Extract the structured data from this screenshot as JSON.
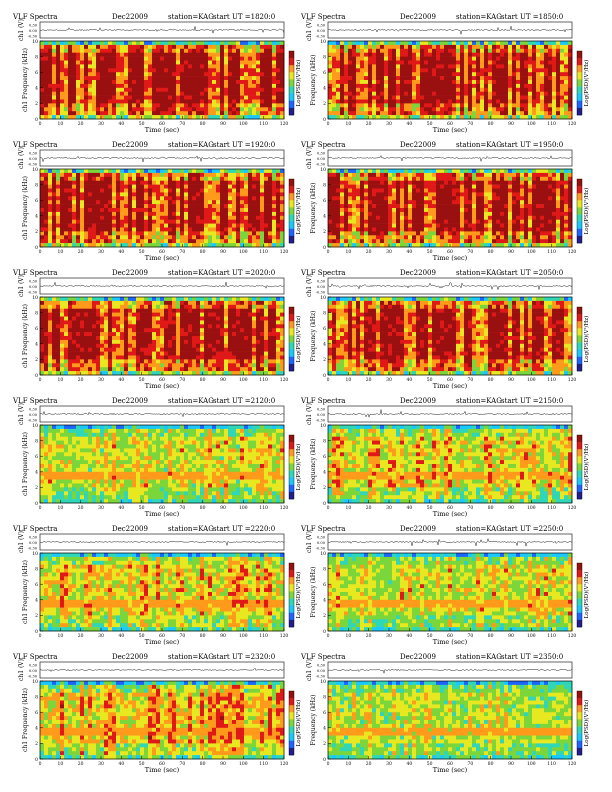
{
  "page": {
    "title_prefix": "VLF Spectra",
    "date": "Dec22009",
    "station": "station=KAG",
    "start_label": "start  UT  ="
  },
  "colors": {
    "background": "#ffffff",
    "axis": "#000000",
    "colormap": [
      "#1f1f8f",
      "#1e64ff",
      "#19c8ff",
      "#2fd6b8",
      "#7ad63a",
      "#e8e820",
      "#ff9a1a",
      "#e01818",
      "#9a1010"
    ]
  },
  "chart_data": [
    {
      "type": "heatmap",
      "start_ut": "1820:0",
      "title": "VLF Spectra  Dec22009  station=KAG  start  UT  =1820:0",
      "ylabel_top": "ch1 (V)",
      "ylabel_main": "ch1  Frequency  (kHz)",
      "xlabel": "Time  (sec)",
      "cbar_label": "Log(PSD)(V²/Hz)",
      "xlim": [
        0,
        120
      ],
      "ylim": [
        0,
        10
      ],
      "amp_ylim": [
        -0.3,
        0.3
      ],
      "x_ticks": [
        0,
        10,
        20,
        30,
        40,
        50,
        60,
        70,
        80,
        90,
        100,
        110,
        120
      ],
      "y_ticks": [
        0,
        2,
        4,
        6,
        8,
        10
      ],
      "amp_ticks": [
        "0.30",
        "0.00",
        "-0.30"
      ],
      "activity": 0.95
    },
    {
      "type": "heatmap",
      "start_ut": "1850:0",
      "title": "VLF Spectra  Dec22009  station=KAG  start  UT  =1850:0",
      "ylabel_top": "ch1 (V)",
      "ylabel_main": "Frequency  (kHz)",
      "xlabel": "Time  (sec)",
      "cbar_label": "Log(PSD)(V²/Hz)",
      "xlim": [
        0,
        120
      ],
      "ylim": [
        0,
        10
      ],
      "amp_ylim": [
        -0.3,
        0.3
      ],
      "x_ticks": [
        0,
        10,
        20,
        30,
        40,
        50,
        60,
        70,
        80,
        90,
        100,
        110,
        120
      ],
      "y_ticks": [
        0,
        2,
        4,
        6,
        8,
        10
      ],
      "amp_ticks": [
        "0.30",
        "0.00",
        "-0.30"
      ],
      "activity": 0.92
    },
    {
      "type": "heatmap",
      "start_ut": "1920:0",
      "title": "VLF Spectra  Dec22009  station=KAG  start  UT  =1920:0",
      "ylabel_top": "ch1 (V)",
      "ylabel_main": "ch1  Frequency  (kHz)",
      "xlabel": "Time  (sec)",
      "cbar_label": "Log(PSD)(V²/Hz)",
      "xlim": [
        0,
        120
      ],
      "ylim": [
        0,
        10
      ],
      "amp_ylim": [
        -0.3,
        0.3
      ],
      "x_ticks": [
        0,
        10,
        20,
        30,
        40,
        50,
        60,
        70,
        80,
        90,
        100,
        110,
        120
      ],
      "y_ticks": [
        0,
        2,
        4,
        6,
        8,
        10
      ],
      "amp_ticks": [
        "0.30",
        "0.00",
        "-0.30"
      ],
      "activity": 0.94
    },
    {
      "type": "heatmap",
      "start_ut": "1950:0",
      "title": "VLF Spectra  Dec22009  station=KAG  start  UT  =1950:0",
      "ylabel_top": "ch1 (V)",
      "ylabel_main": "Frequency  (kHz)",
      "xlabel": "Time  (sec)",
      "cbar_label": "Log(PSD)(V²/Hz)",
      "xlim": [
        0,
        120
      ],
      "ylim": [
        0,
        10
      ],
      "amp_ylim": [
        -0.3,
        0.3
      ],
      "x_ticks": [
        0,
        10,
        20,
        30,
        40,
        50,
        60,
        70,
        80,
        90,
        100,
        110,
        120
      ],
      "y_ticks": [
        0,
        2,
        4,
        6,
        8,
        10
      ],
      "amp_ticks": [
        "0.30",
        "0.00",
        "-0.30"
      ],
      "activity": 0.93
    },
    {
      "type": "heatmap",
      "start_ut": "2020:0",
      "title": "VLF Spectra  Dec22009  station=KAG  start  UT  =2020:0",
      "ylabel_top": "ch1 (V)",
      "ylabel_main": "ch1  Frequency  (kHz)",
      "xlabel": "Time  (sec)",
      "cbar_label": "Log(PSD)(V²/Hz)",
      "xlim": [
        0,
        120
      ],
      "ylim": [
        0,
        10
      ],
      "amp_ylim": [
        -0.3,
        0.3
      ],
      "x_ticks": [
        0,
        10,
        20,
        30,
        40,
        50,
        60,
        70,
        80,
        90,
        100,
        110,
        120
      ],
      "y_ticks": [
        0,
        2,
        4,
        6,
        8,
        10
      ],
      "amp_ticks": [
        "0.30",
        "0.00",
        "-0.30"
      ],
      "activity": 0.9
    },
    {
      "type": "heatmap",
      "start_ut": "2050:0",
      "title": "VLF Spectra  Dec22009  station=KAG  start  UT  =2050:0",
      "ylabel_top": "ch1 (V)",
      "ylabel_main": "Frequency  (kHz)",
      "xlabel": "Time  (sec)",
      "cbar_label": "Log(PSD)(V²/Hz)",
      "xlim": [
        0,
        120
      ],
      "ylim": [
        0,
        10
      ],
      "amp_ylim": [
        -0.3,
        0.3
      ],
      "x_ticks": [
        0,
        10,
        20,
        30,
        40,
        50,
        60,
        70,
        80,
        90,
        100,
        110,
        120
      ],
      "y_ticks": [
        0,
        2,
        4,
        6,
        8,
        10
      ],
      "amp_ticks": [
        "0.30",
        "0.00",
        "-0.30"
      ],
      "activity": 0.9
    },
    {
      "type": "heatmap",
      "start_ut": "2120:0",
      "title": "VLF Spectra  Dec22009  station=KAG  start  UT  =2120:0",
      "ylabel_top": "ch1 (V)",
      "ylabel_main": "ch1  Frequency  (kHz)",
      "xlabel": "Time  (sec)",
      "cbar_label": "Log(PSD)(V²/Hz)",
      "xlim": [
        0,
        120
      ],
      "ylim": [
        0,
        10
      ],
      "amp_ylim": [
        -0.3,
        0.3
      ],
      "x_ticks": [
        0,
        10,
        20,
        30,
        40,
        50,
        60,
        70,
        80,
        90,
        100,
        110,
        120
      ],
      "y_ticks": [
        0,
        2,
        4,
        6,
        8,
        10
      ],
      "amp_ticks": [
        "0.30",
        "0.00",
        "-0.30"
      ],
      "activity": 0.45
    },
    {
      "type": "heatmap",
      "start_ut": "2150:0",
      "title": "VLF Spectra  Dec22009  station=KAG  start  UT  =2150:0",
      "ylabel_top": "ch1 (V)",
      "ylabel_main": "Frequency  (kHz)",
      "xlabel": "Time  (sec)",
      "cbar_label": "Log(PSD)(V²/Hz)",
      "xlim": [
        0,
        120
      ],
      "ylim": [
        0,
        10
      ],
      "amp_ylim": [
        -0.3,
        0.3
      ],
      "x_ticks": [
        0,
        10,
        20,
        30,
        40,
        50,
        60,
        70,
        80,
        90,
        100,
        110,
        120
      ],
      "y_ticks": [
        0,
        2,
        4,
        6,
        8,
        10
      ],
      "amp_ticks": [
        "0.30",
        "0.00",
        "-0.30"
      ],
      "activity": 0.5
    },
    {
      "type": "heatmap",
      "start_ut": "2220:0",
      "title": "VLF Spectra  Dec22009  station=KAG  start  UT  =2220:0",
      "ylabel_top": "ch1 (V)",
      "ylabel_main": "ch1  Frequency  (kHz)",
      "xlabel": "Time  (sec)",
      "cbar_label": "Log(PSD)(V²/Hz)",
      "xlim": [
        0,
        120
      ],
      "ylim": [
        0,
        10
      ],
      "amp_ylim": [
        -0.3,
        0.3
      ],
      "x_ticks": [
        0,
        10,
        20,
        30,
        40,
        50,
        60,
        70,
        80,
        90,
        100,
        110,
        120
      ],
      "y_ticks": [
        0,
        2,
        4,
        6,
        8,
        10
      ],
      "amp_ticks": [
        "0.30",
        "0.00",
        "-0.30"
      ],
      "activity": 0.55
    },
    {
      "type": "heatmap",
      "start_ut": "2250:0",
      "title": "VLF Spectra  Dec22009  station=KAG  start  UT  =2250:0",
      "ylabel_top": "ch1 (V)",
      "ylabel_main": "Frequency  (kHz)",
      "xlabel": "Time  (sec)",
      "cbar_label": "Log(PSD)(V²/Hz)",
      "xlim": [
        0,
        120
      ],
      "ylim": [
        0,
        10
      ],
      "amp_ylim": [
        -0.3,
        0.3
      ],
      "x_ticks": [
        0,
        10,
        20,
        30,
        40,
        50,
        60,
        70,
        80,
        90,
        100,
        110,
        120
      ],
      "y_ticks": [
        0,
        2,
        4,
        6,
        8,
        10
      ],
      "amp_ticks": [
        "0.30",
        "0.00",
        "-0.30"
      ],
      "activity": 0.45
    },
    {
      "type": "heatmap",
      "start_ut": "2320:0",
      "title": "VLF Spectra  Dec22009  station=KAG  start  UT  =2320:0",
      "ylabel_top": "ch1 (V)",
      "ylabel_main": "ch1  Frequency  (kHz)",
      "xlabel": "Time  (sec)",
      "cbar_label": "Log(PSD)(V²/Hz)",
      "xlim": [
        0,
        120
      ],
      "ylim": [
        0,
        10
      ],
      "amp_ylim": [
        -0.3,
        0.3
      ],
      "x_ticks": [
        0,
        10,
        20,
        30,
        40,
        50,
        60,
        70,
        80,
        90,
        100,
        110,
        120
      ],
      "y_ticks": [
        0,
        2,
        4,
        6,
        8,
        10
      ],
      "amp_ticks": [
        "0.30",
        "0.00",
        "-0.30"
      ],
      "activity": 0.6
    },
    {
      "type": "heatmap",
      "start_ut": "2350:0",
      "title": "VLF Spectra  Dec22009  station=KAG  start  UT  =2350:0",
      "ylabel_top": "ch1 (V)",
      "ylabel_main": "Frequency  (kHz)",
      "xlabel": "Time  (sec)",
      "cbar_label": "Log(PSD)(V²/Hz)",
      "xlim": [
        0,
        120
      ],
      "ylim": [
        0,
        10
      ],
      "amp_ylim": [
        -0.3,
        0.3
      ],
      "x_ticks": [
        0,
        10,
        20,
        30,
        40,
        50,
        60,
        70,
        80,
        90,
        100,
        110,
        120
      ],
      "y_ticks": [
        0,
        2,
        4,
        6,
        8,
        10
      ],
      "amp_ticks": [
        "0.30",
        "0.00",
        "-0.30"
      ],
      "activity": 0.4
    }
  ]
}
